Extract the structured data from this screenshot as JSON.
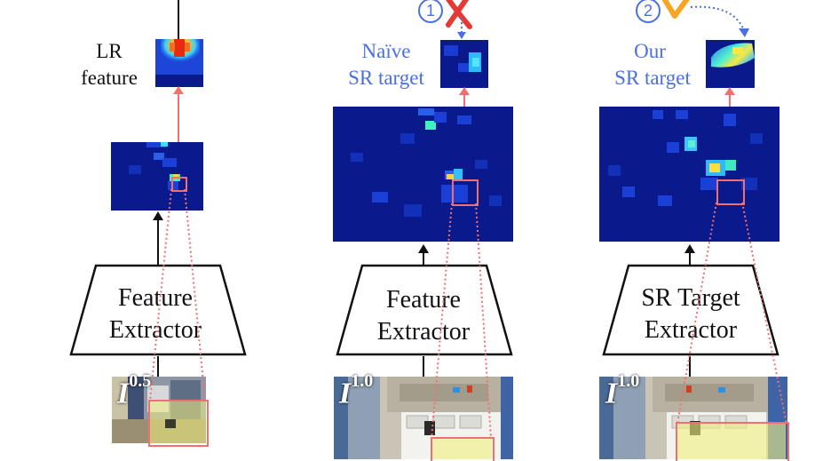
{
  "columns": [
    {
      "id": "lr",
      "target_label": [
        "LR",
        "feature"
      ],
      "extractor_label": [
        "Feature",
        "Extractor"
      ],
      "image_label": {
        "base": "I",
        "sup": "0.5"
      }
    },
    {
      "id": "naive",
      "step": "1",
      "mark": "cross",
      "target_label": [
        "Naïve",
        "SR target"
      ],
      "extractor_label": [
        "Feature",
        "Extractor"
      ],
      "image_label": {
        "base": "I",
        "sup": "1.0"
      }
    },
    {
      "id": "ours",
      "step": "2",
      "mark": "check",
      "target_label": [
        "Our",
        "SR target"
      ],
      "extractor_label": [
        "SR Target",
        "Extractor"
      ],
      "image_label": {
        "base": "I",
        "sup": "1.0"
      }
    }
  ],
  "colors": {
    "label_blue": "#4a6fe0",
    "link_red": "#f07070",
    "cross_red": "#e53935",
    "check_orange": "#f6a623",
    "heatmap_bg": "#0a1a8c"
  }
}
